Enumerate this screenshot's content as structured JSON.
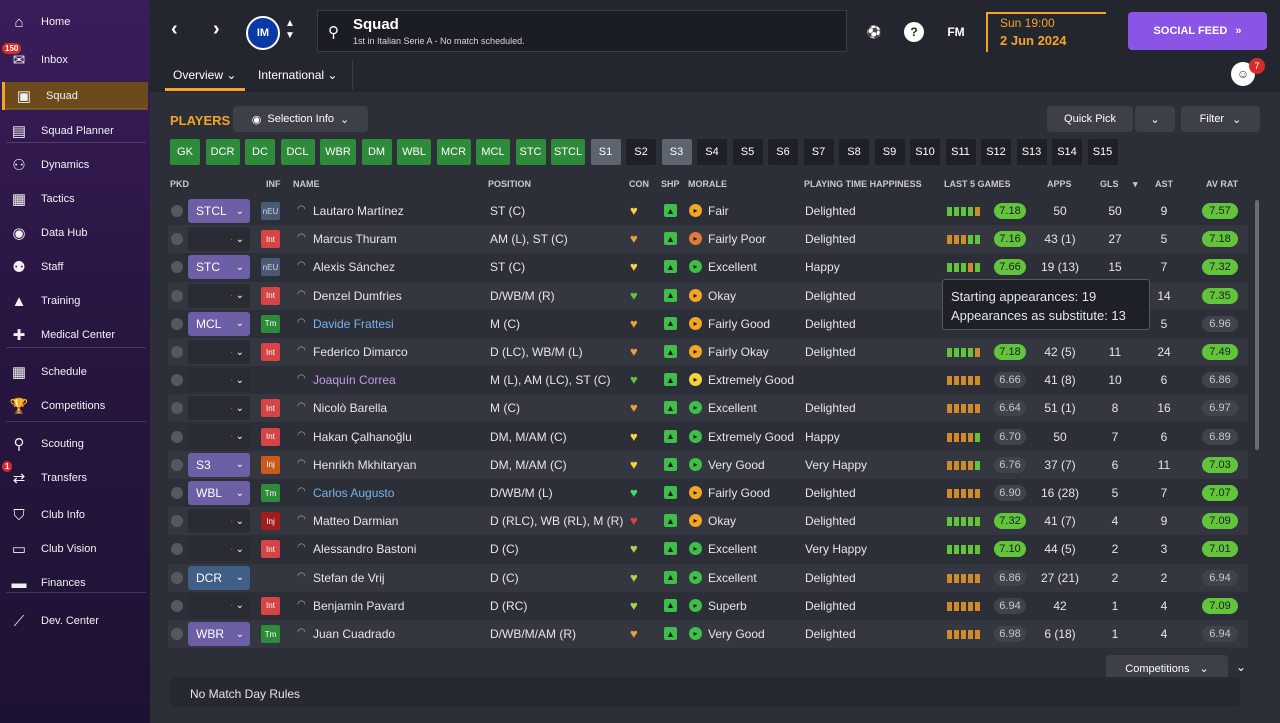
{
  "sidebar": {
    "items": [
      {
        "label": "Home",
        "icon": "home-icon",
        "glyph": "⌂"
      },
      {
        "label": "Inbox",
        "icon": "inbox-icon",
        "glyph": "✉",
        "badge": "150"
      },
      {
        "label": "Squad",
        "icon": "squad-shirt-icon",
        "glyph": "▣",
        "active": true
      },
      {
        "label": "Squad Planner",
        "icon": "planner-icon",
        "glyph": "▤"
      },
      {
        "label": "Dynamics",
        "icon": "dynamics-icon",
        "glyph": "⚇"
      },
      {
        "label": "Tactics",
        "icon": "tactics-icon",
        "glyph": "▦"
      },
      {
        "label": "Data Hub",
        "icon": "data-hub-icon",
        "glyph": "◉"
      },
      {
        "label": "Staff",
        "icon": "staff-icon",
        "glyph": "⚉"
      },
      {
        "label": "Training",
        "icon": "training-icon",
        "glyph": "▲"
      },
      {
        "label": "Medical Center",
        "icon": "medical-icon",
        "glyph": "✚"
      },
      {
        "label": "Schedule",
        "icon": "schedule-icon",
        "glyph": "▦"
      },
      {
        "label": "Competitions",
        "icon": "trophy-icon",
        "glyph": "🏆"
      },
      {
        "label": "Scouting",
        "icon": "scouting-icon",
        "glyph": "⚲"
      },
      {
        "label": "Transfers",
        "icon": "transfers-icon",
        "glyph": "⇄",
        "badge": "1"
      },
      {
        "label": "Club Info",
        "icon": "club-info-icon",
        "glyph": "⛉"
      },
      {
        "label": "Club Vision",
        "icon": "club-vision-icon",
        "glyph": "▭"
      },
      {
        "label": "Finances",
        "icon": "finances-icon",
        "glyph": "▬"
      },
      {
        "label": "Dev. Center",
        "icon": "dev-center-icon",
        "glyph": "⟋"
      }
    ]
  },
  "header": {
    "title": "Squad",
    "subtitle": "1st in Italian Serie A - No match scheduled.",
    "club_logo": "IM",
    "fm_label": "FM",
    "day_time": "Sun 19:00",
    "date": "2 Jun 2024",
    "social_feed": "SOCIAL FEED",
    "notifications": "7",
    "tabs": {
      "overview": "Overview",
      "international": "International"
    }
  },
  "toolbar": {
    "players": "PLAYERS",
    "selection_info": "Selection Info",
    "quick_pick": "Quick Pick",
    "filter": "Filter"
  },
  "position_chips": [
    {
      "label": "GK",
      "style": "g"
    },
    {
      "label": "DCR",
      "style": "g"
    },
    {
      "label": "DC",
      "style": "g"
    },
    {
      "label": "DCL",
      "style": "g"
    },
    {
      "label": "WBR",
      "style": "g"
    },
    {
      "label": "DM",
      "style": "g"
    },
    {
      "label": "WBL",
      "style": "g"
    },
    {
      "label": "MCR",
      "style": "g"
    },
    {
      "label": "MCL",
      "style": "g"
    },
    {
      "label": "STC",
      "style": "g"
    },
    {
      "label": "STCL",
      "style": "g"
    },
    {
      "label": "S1",
      "style": "gr"
    },
    {
      "label": "S2",
      "style": "d"
    },
    {
      "label": "S3",
      "style": "gr"
    },
    {
      "label": "S4",
      "style": "d"
    },
    {
      "label": "S5",
      "style": "d"
    },
    {
      "label": "S6",
      "style": "d"
    },
    {
      "label": "S7",
      "style": "d"
    },
    {
      "label": "S8",
      "style": "d"
    },
    {
      "label": "S9",
      "style": "d"
    },
    {
      "label": "S10",
      "style": "d"
    },
    {
      "label": "S11",
      "style": "d"
    },
    {
      "label": "S12",
      "style": "d"
    },
    {
      "label": "S13",
      "style": "d"
    },
    {
      "label": "S14",
      "style": "d"
    },
    {
      "label": "S15",
      "style": "d"
    }
  ],
  "columns": {
    "pkd": "PKD",
    "inf": "INF",
    "name": "NAME",
    "position": "POSITION",
    "con": "CON",
    "shp": "SHP",
    "morale": "MORALE",
    "pth": "PLAYING TIME HAPPINESS",
    "last5": "LAST 5 GAMES",
    "apps": "APPS",
    "gls": "GLS",
    "ast": "AST",
    "avrat": "AV RAT"
  },
  "players": [
    {
      "pkd": "STCL",
      "inf": "nEU",
      "name": "Lautaro Martínez",
      "pos": "ST (C)",
      "morale": "Fair",
      "mor_c": "#f5a524",
      "pth": "Delighted",
      "last5": [
        "#62c43a",
        "#62c43a",
        "#62c43a",
        "#62c43a",
        "#d08a2a"
      ],
      "l5": "7.18",
      "l5g": true,
      "apps": "50",
      "gls": "50",
      "ast": "9",
      "avr": "7.57",
      "avrg": true,
      "con": "#f5d43a",
      "ncol": ""
    },
    {
      "pkd": "",
      "inf": "Int",
      "name": "Marcus Thuram",
      "pos": "AM (L), ST (C)",
      "morale": "Fairly Poor",
      "mor_c": "#e07a3a",
      "pth": "Delighted",
      "last5": [
        "#d08a2a",
        "#d08a2a",
        "#d08a2a",
        "#62c43a",
        "#62c43a"
      ],
      "l5": "7.16",
      "l5g": true,
      "apps": "43 (1)",
      "gls": "27",
      "ast": "5",
      "avr": "7.18",
      "avrg": true,
      "con": "#e8a040",
      "ncol": ""
    },
    {
      "pkd": "STC",
      "inf": "nEU",
      "name": "Alexis Sánchez",
      "pos": "ST (C)",
      "morale": "Excellent",
      "mor_c": "#3fbf4a",
      "pth": "Happy",
      "last5": [
        "#62c43a",
        "#62c43a",
        "#62c43a",
        "#d08a2a",
        "#62c43a"
      ],
      "l5": "7.66",
      "l5g": true,
      "apps": "19 (13)",
      "gls": "15",
      "ast": "7",
      "avr": "7.32",
      "avrg": true,
      "con": "#f5d43a",
      "ncol": ""
    },
    {
      "pkd": "",
      "inf": "Int",
      "name": "Denzel Dumfries",
      "pos": "D/WB/M (R)",
      "morale": "Okay",
      "mor_c": "#f5a524",
      "pth": "Delighted",
      "last5": [],
      "l5": "",
      "l5g": false,
      "apps": "",
      "gls": "",
      "ast": "14",
      "avr": "7.35",
      "avrg": true,
      "con": "#62c43a",
      "ncol": ""
    },
    {
      "pkd": "MCL",
      "inf": "Tm",
      "name": "Davide Frattesi",
      "pos": "M (C)",
      "morale": "Fairly Good",
      "mor_c": "#f5a524",
      "pth": "Delighted",
      "last5": [],
      "l5": "",
      "l5g": false,
      "apps": "",
      "gls": "",
      "ast": "5",
      "avr": "6.96",
      "avrg": false,
      "con": "#e8a040",
      "ncol": "blue"
    },
    {
      "pkd": "",
      "inf": "Int",
      "name": "Federico Dimarco",
      "pos": "D (LC), WB/M (L)",
      "morale": "Fairly Okay",
      "mor_c": "#f5a524",
      "pth": "Delighted",
      "last5": [
        "#62c43a",
        "#62c43a",
        "#62c43a",
        "#62c43a",
        "#d08a2a"
      ],
      "l5": "7.18",
      "l5g": true,
      "apps": "42 (5)",
      "gls": "11",
      "ast": "24",
      "avr": "7.49",
      "avrg": true,
      "con": "#e8a040",
      "ncol": ""
    },
    {
      "pkd": "",
      "inf": "",
      "name": "Joaquín Correa",
      "pos": "M (L), AM (LC), ST (C)",
      "morale": "Extremely Good",
      "mor_c": "#f5d43a",
      "pth": "",
      "last5": [
        "#d08a2a",
        "#d08a2a",
        "#d08a2a",
        "#d08a2a",
        "#d08a2a"
      ],
      "l5": "6.66",
      "l5g": false,
      "apps": "41 (8)",
      "gls": "10",
      "ast": "6",
      "avr": "6.86",
      "avrg": false,
      "con": "#62c43a",
      "ncol": "purple"
    },
    {
      "pkd": "",
      "inf": "Int",
      "name": "Nicolò Barella",
      "pos": "M (C)",
      "morale": "Excellent",
      "mor_c": "#3fbf4a",
      "pth": "Delighted",
      "last5": [
        "#d08a2a",
        "#d08a2a",
        "#d08a2a",
        "#d08a2a",
        "#d08a2a"
      ],
      "l5": "6.64",
      "l5g": false,
      "apps": "51 (1)",
      "gls": "8",
      "ast": "16",
      "avr": "6.97",
      "avrg": false,
      "con": "#e8a040",
      "ncol": ""
    },
    {
      "pkd": "",
      "inf": "Int",
      "name": "Hakan Çalhanoğlu",
      "pos": "DM, M/AM (C)",
      "morale": "Extremely Good",
      "mor_c": "#3fbf4a",
      "pth": "Happy",
      "last5": [
        "#d08a2a",
        "#d08a2a",
        "#d08a2a",
        "#d08a2a",
        "#62c43a"
      ],
      "l5": "6.70",
      "l5g": false,
      "apps": "50",
      "gls": "7",
      "ast": "6",
      "avr": "6.89",
      "avrg": false,
      "con": "#f5d43a",
      "ncol": ""
    },
    {
      "pkd": "S3",
      "inf": "Inj",
      "name": "Henrikh Mkhitaryan",
      "pos": "DM, M/AM (C)",
      "morale": "Very Good",
      "mor_c": "#3fbf4a",
      "pth": "Very Happy",
      "last5": [
        "#d08a2a",
        "#d08a2a",
        "#d08a2a",
        "#d08a2a",
        "#62c43a"
      ],
      "l5": "6.76",
      "l5g": false,
      "apps": "37 (7)",
      "gls": "6",
      "ast": "11",
      "avr": "7.03",
      "avrg": true,
      "con": "#f5d43a",
      "ncol": ""
    },
    {
      "pkd": "WBL",
      "inf": "Tm",
      "name": "Carlos Augusto",
      "pos": "D/WB/M (L)",
      "morale": "Fairly Good",
      "mor_c": "#f5a524",
      "pth": "Delighted",
      "last5": [
        "#d08a2a",
        "#d08a2a",
        "#d08a2a",
        "#d08a2a",
        "#d08a2a"
      ],
      "l5": "6.90",
      "l5g": false,
      "apps": "16 (28)",
      "gls": "5",
      "ast": "7",
      "avr": "7.07",
      "avrg": true,
      "con": "#3fe070",
      "ncol": "blue"
    },
    {
      "pkd": "",
      "inf": "Inj",
      "name": "Matteo Darmian",
      "pos": "D (RLC), WB (RL), M (R)",
      "morale": "Okay",
      "mor_c": "#f5a524",
      "pth": "Delighted",
      "last5": [
        "#62c43a",
        "#62c43a",
        "#62c43a",
        "#62c43a",
        "#62c43a"
      ],
      "l5": "7.32",
      "l5g": true,
      "apps": "41 (7)",
      "gls": "4",
      "ast": "9",
      "avr": "7.09",
      "avrg": true,
      "con": "#d64545",
      "ncol": "",
      "injr": true
    },
    {
      "pkd": "",
      "inf": "Int",
      "name": "Alessandro Bastoni",
      "pos": "D (C)",
      "morale": "Excellent",
      "mor_c": "#3fbf4a",
      "pth": "Very Happy",
      "last5": [
        "#62c43a",
        "#62c43a",
        "#62c43a",
        "#62c43a",
        "#62c43a"
      ],
      "l5": "7.10",
      "l5g": true,
      "apps": "44 (5)",
      "gls": "2",
      "ast": "3",
      "avr": "7.01",
      "avrg": true,
      "con": "#a8d84a",
      "ncol": ""
    },
    {
      "pkd": "DCR",
      "inf": "",
      "name": "Stefan de Vrij",
      "pos": "D (C)",
      "morale": "Excellent",
      "mor_c": "#3fbf4a",
      "pth": "Delighted",
      "last5": [
        "#d08a2a",
        "#d08a2a",
        "#d08a2a",
        "#d08a2a",
        "#d08a2a"
      ],
      "l5": "6.86",
      "l5g": false,
      "apps": "27 (21)",
      "gls": "2",
      "ast": "2",
      "avr": "6.94",
      "avrg": false,
      "con": "#a8d84a",
      "ncol": "",
      "dcr": true
    },
    {
      "pkd": "",
      "inf": "Int",
      "name": "Benjamin Pavard",
      "pos": "D (RC)",
      "morale": "Superb",
      "mor_c": "#3fbf4a",
      "pth": "Delighted",
      "last5": [
        "#d08a2a",
        "#d08a2a",
        "#d08a2a",
        "#d08a2a",
        "#d08a2a"
      ],
      "l5": "6.94",
      "l5g": false,
      "apps": "42",
      "gls": "1",
      "ast": "4",
      "avr": "7.09",
      "avrg": true,
      "con": "#a8d84a",
      "ncol": ""
    },
    {
      "pkd": "WBR",
      "inf": "Tm",
      "name": "Juan Cuadrado",
      "pos": "D/WB/M/AM (R)",
      "morale": "Very Good",
      "mor_c": "#3fbf4a",
      "pth": "Delighted",
      "last5": [
        "#d08a2a",
        "#d08a2a",
        "#d08a2a",
        "#d08a2a",
        "#d08a2a"
      ],
      "l5": "6.98",
      "l5g": false,
      "apps": "6 (18)",
      "gls": "1",
      "ast": "4",
      "avr": "6.94",
      "avrg": false,
      "con": "#e8a040",
      "ncol": ""
    }
  ],
  "tooltip": {
    "line1": "Starting appearances: 19",
    "line2": "Appearances as substitute: 13"
  },
  "footer": {
    "competitions": "Competitions",
    "rules": "No Match Day Rules"
  }
}
